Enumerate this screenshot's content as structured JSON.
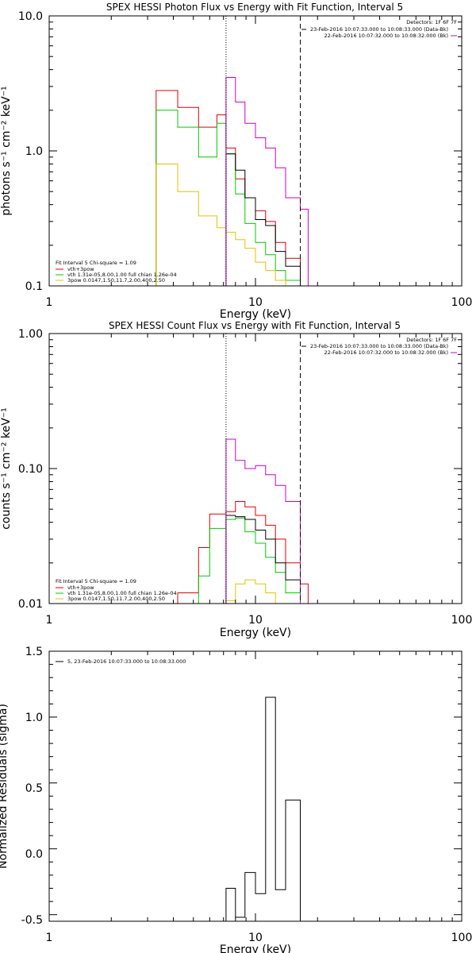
{
  "colors": {
    "black": "#000000",
    "red": "#e00000",
    "green": "#00cc00",
    "yellow": "#e8c000",
    "magenta": "#cc00cc"
  },
  "chart_data": [
    {
      "type": "line",
      "title": "SPEX HESSI Photon Flux vs Energy with Fit Function, Interval 5",
      "xlabel": "Energy (keV)",
      "ylabel": "photons s⁻¹ cm⁻² keV⁻¹",
      "xscale": "log",
      "yscale": "log",
      "xlim": [
        1,
        100
      ],
      "ylim": [
        0.1,
        10
      ],
      "x_ticklabels": [
        "1",
        "10",
        "100"
      ],
      "y_ticklabels": [
        "0.1",
        "1.0",
        "10.0"
      ],
      "vlines": [
        {
          "x": 7.2,
          "style": "dotted"
        },
        {
          "x": 16.5,
          "style": "dashed"
        }
      ],
      "header": {
        "detectors": "Detectors: 1F 6F 7F",
        "line1": "23-Feb-2016 10:07:33.000 to 10:08:33.000 (Data-Bk)",
        "line2": "22-Feb-2016 10:07:32.000 to 10:08:32.000 (Bk)"
      },
      "fit_legend": {
        "title": "Fit Interval 5   Chi-square = 1.09",
        "items": [
          "vth+3pow",
          "vth 1.31e-05,8.00,1.00  full chian 1.26e-04",
          "3pow 0.0147,1.50,11.7,2.00,400,2.50"
        ]
      },
      "series": [
        {
          "color": "red",
          "edges": [
            3.3,
            4.2,
            5.3,
            6.5,
            7.2,
            8.0,
            8.9,
            10.0,
            11.2,
            12.5,
            14.0,
            16.5
          ],
          "values": [
            2.8,
            2.1,
            1.5,
            1.85,
            1.05,
            0.62,
            0.45,
            0.36,
            0.3,
            0.21,
            0.16
          ]
        },
        {
          "color": "green",
          "edges": [
            3.3,
            4.2,
            5.3,
            6.5,
            7.2,
            8.0,
            8.9,
            10.0,
            11.2,
            12.5,
            14.0,
            16.5
          ],
          "values": [
            2.0,
            1.5,
            0.9,
            1.6,
            0.95,
            0.48,
            0.29,
            0.21,
            0.17,
            0.13,
            0.11
          ]
        },
        {
          "color": "yellow",
          "edges": [
            3.3,
            4.2,
            5.3,
            6.5,
            7.2,
            8.0,
            8.9,
            10.0,
            11.2,
            12.5,
            14.0,
            16.5
          ],
          "values": [
            0.8,
            0.5,
            0.33,
            0.27,
            0.25,
            0.22,
            0.19,
            0.15,
            0.13,
            0.11,
            0.1
          ]
        },
        {
          "color": "black",
          "edges": [
            7.2,
            8.0,
            8.9,
            10.0,
            11.2,
            12.5,
            14.0,
            16.5
          ],
          "values": [
            0.95,
            0.72,
            0.45,
            0.31,
            0.28,
            0.18,
            0.14
          ]
        },
        {
          "color": "magenta",
          "edges": [
            7.2,
            8.0,
            8.9,
            10.0,
            11.2,
            12.5,
            14.0,
            16.5,
            18.0
          ],
          "values": [
            3.5,
            2.3,
            1.6,
            1.25,
            1.05,
            0.75,
            0.45,
            0.37
          ]
        }
      ]
    },
    {
      "type": "line",
      "title": "SPEX HESSI Count Flux vs Energy with Fit Function, Interval 5",
      "xlabel": "Energy (keV)",
      "ylabel": "counts s⁻¹ cm⁻² keV⁻¹",
      "xscale": "log",
      "yscale": "log",
      "xlim": [
        1,
        100
      ],
      "ylim": [
        0.01,
        1
      ],
      "x_ticklabels": [
        "1",
        "10",
        "100"
      ],
      "y_ticklabels": [
        "0.01",
        "0.10",
        "1.00"
      ],
      "vlines": [
        {
          "x": 7.2,
          "style": "dotted"
        },
        {
          "x": 16.5,
          "style": "dashed"
        }
      ],
      "header": {
        "detectors": "Detectors: 1F 6F 7F",
        "line1": "23-Feb-2016 10:07:33.000 to 10:08:33.000 (Data-Bk)",
        "line2": "22-Feb-2016 10:07:32.000 to 10:08:32.000 (Bk)"
      },
      "fit_legend": {
        "title": "Fit Interval 5   Chi-square = 1.09",
        "items": [
          "vth+3pow",
          "vth 1.31e-05,8.00,1.00  full chian 1.26e-04",
          "3pow 0.0147,1.50,11.7,2.00,400,2.50"
        ]
      },
      "series": [
        {
          "color": "red",
          "edges": [
            4.2,
            5.3,
            6.0,
            7.2,
            8.0,
            8.9,
            10.0,
            11.2,
            12.5,
            14.0,
            16.5,
            18.0,
            20.0
          ],
          "values": [
            0.012,
            0.026,
            0.046,
            0.048,
            0.057,
            0.052,
            0.045,
            0.038,
            0.03,
            0.02,
            0.014,
            0.01
          ]
        },
        {
          "color": "green",
          "edges": [
            5.3,
            6.0,
            7.2,
            8.0,
            8.9,
            10.0,
            11.2,
            12.5,
            14.0,
            16.5
          ],
          "values": [
            0.016,
            0.036,
            0.042,
            0.043,
            0.034,
            0.028,
            0.022,
            0.017,
            0.012
          ]
        },
        {
          "color": "yellow",
          "edges": [
            7.2,
            8.0,
            8.9,
            10.0,
            11.2,
            12.5,
            14.0
          ],
          "values": [
            0.0105,
            0.014,
            0.015,
            0.014,
            0.012,
            0.01
          ]
        },
        {
          "color": "black",
          "edges": [
            7.2,
            8.0,
            8.9,
            10.0,
            11.2,
            12.5,
            14.0,
            16.5
          ],
          "values": [
            0.045,
            0.044,
            0.042,
            0.035,
            0.03,
            0.02,
            0.015
          ]
        },
        {
          "color": "magenta",
          "edges": [
            7.2,
            8.0,
            8.9,
            10.0,
            11.2,
            12.5,
            14.0,
            16.5
          ],
          "values": [
            0.165,
            0.115,
            0.1,
            0.105,
            0.09,
            0.075,
            0.057
          ]
        }
      ]
    },
    {
      "type": "line",
      "title": "",
      "xlabel": "Energy (keV)",
      "ylabel": "Normalized Residuals (sigma)",
      "xscale": "log",
      "yscale": "linear",
      "xlim": [
        1,
        100
      ],
      "ylim": [
        -0.55,
        1.5
      ],
      "x_ticklabels": [
        "1",
        "10",
        "100"
      ],
      "y_ticklabels": [
        "-0.5",
        "0.0",
        "0.5",
        "1.0",
        "1.5"
      ],
      "legend": [
        "5, 23-Feb-2016 10:07:33.000 to 10:08:33.000"
      ],
      "series": [
        {
          "color": "black",
          "edges": [
            7.2,
            8.0,
            8.9,
            10.0,
            11.2,
            12.5,
            14.0,
            16.5
          ],
          "values": [
            -0.3,
            -0.52,
            -0.18,
            -0.34,
            1.15,
            -0.31,
            0.37
          ]
        }
      ]
    }
  ]
}
